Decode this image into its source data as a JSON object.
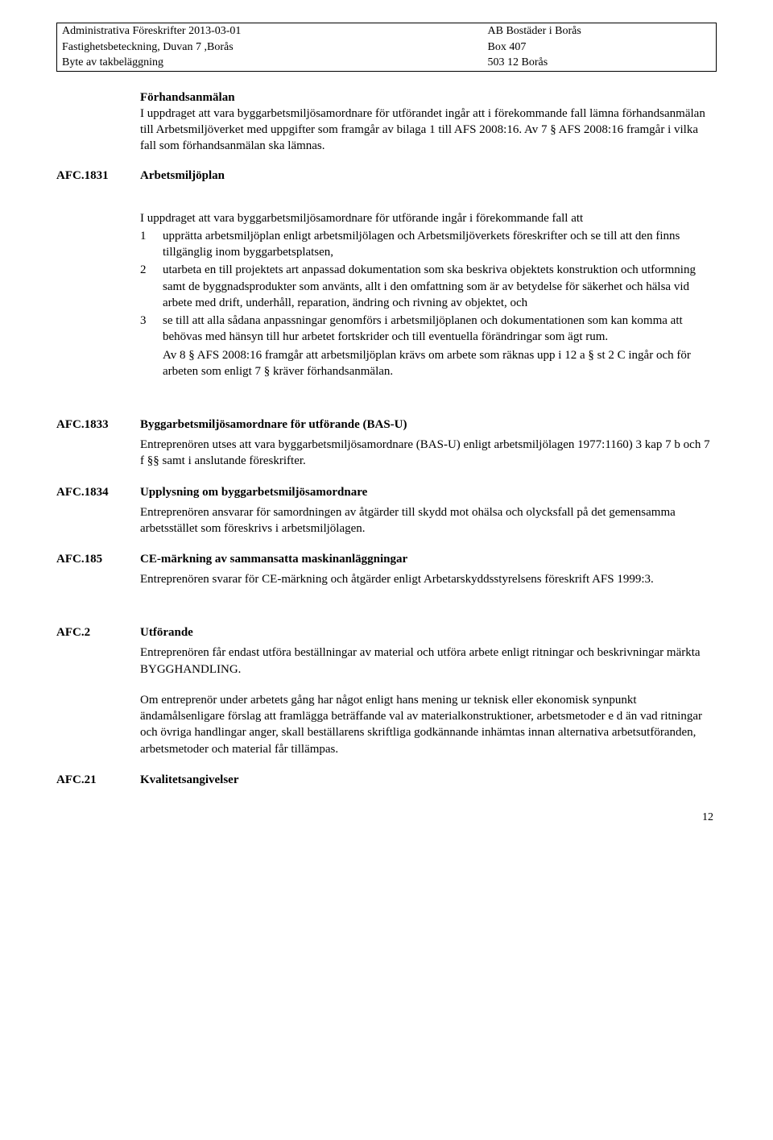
{
  "header": {
    "left1": "Administrativa Föreskrifter 2013-03-01",
    "left2": "Fastighetsbeteckning, Duvan 7 ,Borås",
    "left3": "Byte av takbeläggning",
    "right1": "AB Bostäder i Borås",
    "right2": "Box 407",
    "right3": "503 12  Borås"
  },
  "intro": {
    "title": "Förhandsanmälan",
    "body": "I uppdraget att vara byggarbetsmiljösamordnare för utförandet ingår att i förekommande fall lämna förhandsanmälan till Arbetsmiljöverket med uppgifter som framgår av bilaga 1 till AFS 2008:16. Av 7 § AFS 2008:16 framgår i vilka fall som förhandsanmälan ska lämnas."
  },
  "s1831": {
    "code": "AFC.1831",
    "title": "Arbetsmiljöplan",
    "lead": "I uppdraget att vara byggarbetsmiljösamordnare för utförande ingår i förekommande fall att",
    "item1": "upprätta arbetsmiljöplan enligt arbetsmiljölagen och Arbetsmiljöverkets föreskrifter och se till att den finns tillgänglig inom byggarbetsplatsen,",
    "item2": "utarbeta en till projektets art anpassad dokumentation som ska beskriva objektets konstruktion och utformning samt de byggnadsprodukter som använts, allt i den omfattning som är av betydelse för säkerhet och hälsa vid arbete med drift, underhåll, reparation, ändring och rivning av objektet, och",
    "item3": "se till att alla sådana anpassningar genomförs i arbetsmiljöplanen och dokumentationen som kan komma att behövas med hänsyn till hur arbetet fortskrider och till eventuella förändringar som ägt rum.",
    "tail": "Av 8 § AFS 2008:16 framgår att arbetsmiljöplan krävs om arbete som räknas upp i 12 a § st 2 C ingår och för arbeten som enligt 7 § kräver förhandsanmälan."
  },
  "s1833": {
    "code": "AFC.1833",
    "title": "Byggarbetsmiljösamordnare för utförande (BAS-U)",
    "body": "Entreprenören utses att vara byggarbetsmiljösamordnare (BAS-U) enligt arbetsmiljölagen 1977:1160) 3 kap 7 b och 7 f §§ samt i anslutande föreskrifter."
  },
  "s1834": {
    "code": "AFC.1834",
    "title": "Upplysning om byggarbetsmiljösamordnare",
    "body": "Entreprenören ansvarar för samordningen av åtgärder till skydd mot ohälsa och olycksfall på det gemensamma arbetsstället som föreskrivs i arbetsmiljölagen."
  },
  "s185": {
    "code": "AFC.185",
    "title": "CE-märkning av sammansatta maskinanläggningar",
    "body": "Entreprenören svarar för CE-märkning och åtgärder enligt Arbetarskyddsstyrelsens föreskrift AFS 1999:3."
  },
  "s2": {
    "code": "AFC.2",
    "title": "Utförande",
    "body1": "Entreprenören får endast utföra beställningar av material och utföra arbete enligt ritningar och beskrivningar märkta BYGGHANDLING.",
    "body2": "Om entreprenör under arbetets gång har något enligt hans mening ur teknisk eller ekonomisk synpunkt ändamålsenligare förslag att framlägga beträffande val av materialkonstruktioner, arbetsmetoder e d än vad ritningar och övriga handlingar anger, skall beställarens skriftliga godkännande inhämtas innan alternativa arbetsutföranden, arbetsmetoder och material får tillämpas."
  },
  "s21": {
    "code": "AFC.21",
    "title": "Kvalitetsangivelser"
  },
  "nums": {
    "n1": "1",
    "n2": "2",
    "n3": "3"
  },
  "pageNumber": "12"
}
